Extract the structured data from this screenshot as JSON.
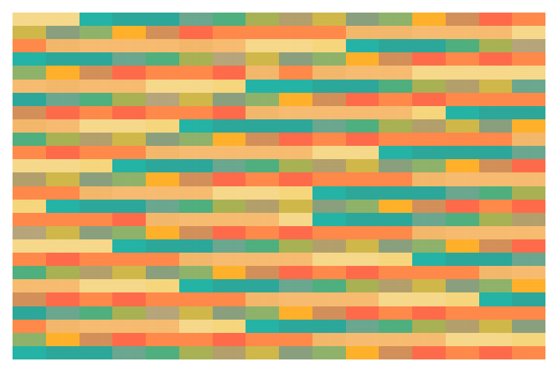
{
  "pattern": {
    "columns": 16,
    "rows": 26,
    "palette": {
      "A": "#f7d98c",
      "B": "#f4b86b",
      "C": "#ffb12a",
      "D": "#d49059",
      "E": "#ff6b4a",
      "F": "#ff8a4a",
      "G": "#f7d77d",
      "H": "#24b4a6",
      "I": "#2ca89a",
      "J": "#4fb07e",
      "K": "#6aa88f",
      "L": "#8aa07d",
      "M": "#9ba86a",
      "N": "#a9b253",
      "O": "#b4a06b",
      "P": "#d0b84a",
      "Q": "#8fb36a",
      "R": "#b7a57b",
      "S": "#f7bc70",
      "T": "#f9a95b"
    },
    "rows_data": [
      [
        "A",
        "A",
        "H",
        "I",
        "I",
        "K",
        "J",
        "N",
        "O",
        "P",
        "L",
        "Q",
        "C",
        "D",
        "E",
        "F"
      ],
      [
        "P",
        "L",
        "Q",
        "C",
        "D",
        "E",
        "F",
        "F",
        "F",
        "F",
        "B",
        "B",
        "S",
        "S",
        "S",
        "A"
      ],
      [
        "F",
        "B",
        "S",
        "S",
        "S",
        "B",
        "S",
        "A",
        "A",
        "G",
        "H",
        "I",
        "I",
        "J",
        "N",
        "R"
      ],
      [
        "H",
        "I",
        "I",
        "K",
        "J",
        "N",
        "R",
        "P",
        "L",
        "Q",
        "C",
        "D",
        "E",
        "F",
        "E",
        "F"
      ],
      [
        "Q",
        "C",
        "D",
        "E",
        "F",
        "F",
        "E",
        "B",
        "F",
        "B",
        "S",
        "S",
        "A",
        "A",
        "A",
        "A"
      ],
      [
        "S",
        "B",
        "S",
        "S",
        "A",
        "A",
        "G",
        "H",
        "H",
        "I",
        "I",
        "J",
        "N",
        "O",
        "P",
        "K"
      ],
      [
        "I",
        "K",
        "J",
        "N",
        "R",
        "P",
        "L",
        "Q",
        "C",
        "D",
        "E",
        "F",
        "E",
        "F",
        "F",
        "F"
      ],
      [
        "D",
        "E",
        "F",
        "E",
        "F",
        "F",
        "E",
        "B",
        "S",
        "S",
        "S",
        "S",
        "G",
        "H",
        "I",
        "I"
      ],
      [
        "B",
        "S",
        "A",
        "A",
        "G",
        "H",
        "I",
        "I",
        "I",
        "K",
        "J",
        "N",
        "O",
        "P",
        "L",
        "C"
      ],
      [
        "J",
        "N",
        "O",
        "P",
        "L",
        "Q",
        "C",
        "D",
        "E",
        "F",
        "E",
        "F",
        "F",
        "F",
        "F",
        "B"
      ],
      [
        "F",
        "E",
        "F",
        "F",
        "B",
        "S",
        "S",
        "S",
        "S",
        "A",
        "A",
        "H",
        "I",
        "I",
        "I",
        "K"
      ],
      [
        "A",
        "A",
        "G",
        "H",
        "I",
        "I",
        "K",
        "J",
        "N",
        "O",
        "P",
        "L",
        "Q",
        "C",
        "D",
        "E"
      ],
      [
        "O",
        "P",
        "L",
        "Q",
        "C",
        "D",
        "E",
        "F",
        "E",
        "F",
        "F",
        "F",
        "B",
        "S",
        "S",
        "S"
      ],
      [
        "F",
        "F",
        "B",
        "S",
        "S",
        "S",
        "A",
        "A",
        "G",
        "H",
        "I",
        "I",
        "I",
        "K",
        "J",
        "N"
      ],
      [
        "G",
        "H",
        "I",
        "I",
        "K",
        "J",
        "N",
        "O",
        "P",
        "L",
        "Q",
        "C",
        "D",
        "E",
        "F",
        "E"
      ],
      [
        "F",
        "F",
        "F",
        "E",
        "B",
        "S",
        "S",
        "S",
        "A",
        "H",
        "I",
        "I",
        "K",
        "J",
        "N",
        "O"
      ],
      [
        "R",
        "P",
        "L",
        "Q",
        "C",
        "D",
        "E",
        "F",
        "E",
        "F",
        "F",
        "F",
        "B",
        "S",
        "S",
        "S"
      ],
      [
        "A",
        "A",
        "A",
        "H",
        "I",
        "I",
        "K",
        "J",
        "N",
        "O",
        "P",
        "L",
        "Q",
        "C",
        "D",
        "E"
      ],
      [
        "F",
        "E",
        "F",
        "F",
        "F",
        "B",
        "S",
        "S",
        "S",
        "A",
        "A",
        "G",
        "H",
        "I",
        "I",
        "K"
      ],
      [
        "J",
        "N",
        "O",
        "P",
        "L",
        "Q",
        "C",
        "D",
        "E",
        "F",
        "E",
        "F",
        "F",
        "F",
        "B",
        "S"
      ],
      [
        "S",
        "S",
        "A",
        "A",
        "G",
        "H",
        "I",
        "I",
        "K",
        "J",
        "N",
        "O",
        "P",
        "L",
        "Q",
        "C"
      ],
      [
        "D",
        "E",
        "F",
        "E",
        "F",
        "F",
        "F",
        "B",
        "S",
        "S",
        "S",
        "A",
        "A",
        "G",
        "H",
        "I"
      ],
      [
        "I",
        "K",
        "J",
        "N",
        "R",
        "P",
        "L",
        "Q",
        "C",
        "D",
        "E",
        "F",
        "E",
        "F",
        "F",
        "F"
      ],
      [
        "F",
        "B",
        "S",
        "S",
        "S",
        "A",
        "G",
        "H",
        "I",
        "I",
        "K",
        "J",
        "N",
        "O",
        "P",
        "L"
      ],
      [
        "Q",
        "C",
        "D",
        "E",
        "F",
        "F",
        "E",
        "F",
        "F",
        "B",
        "S",
        "S",
        "S",
        "A",
        "A",
        "G"
      ],
      [
        "H",
        "I",
        "I",
        "K",
        "J",
        "N",
        "O",
        "P",
        "L",
        "Q",
        "C",
        "D",
        "E",
        "F",
        "E",
        "F"
      ]
    ]
  }
}
